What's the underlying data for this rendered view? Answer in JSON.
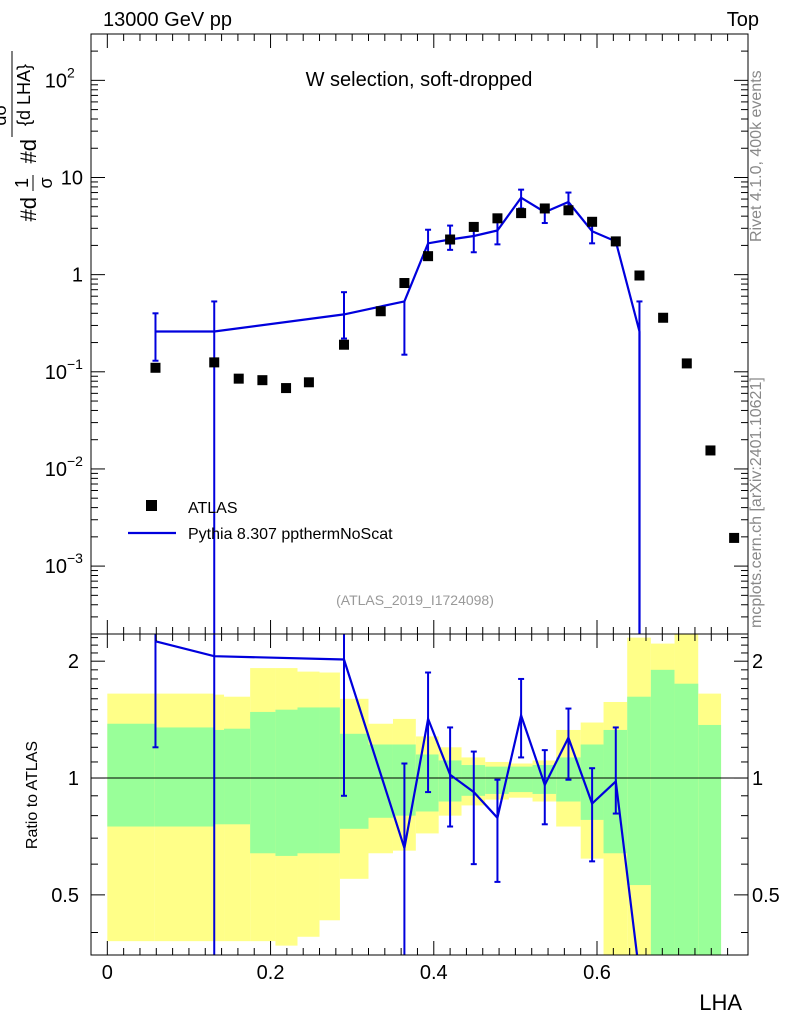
{
  "header": {
    "left": "13000 GeV pp",
    "right": "Top"
  },
  "side_labels": {
    "rivet": "Rivet 4.1.0,  400k events",
    "source": "mcplots.cern.ch [arXiv:2401.10621]"
  },
  "colors": {
    "data": "#000000",
    "mc": "#0000dd",
    "band_inner": "#99ff99",
    "band_outer": "#ffff88"
  },
  "chart_data": [
    {
      "type": "scatter",
      "panel": "main",
      "title": "W selection, soft-dropped",
      "watermark": "(ATLAS_2019_I1724098)",
      "ylabel_parts": [
        "#d",
        "1",
        "σ",
        "#d",
        "dσ",
        "{d LHA}"
      ],
      "yscale": "log",
      "xlim": [
        -0.02,
        0.785
      ],
      "ylim": [
        0.0002,
        300
      ],
      "yticks": [
        {
          "value": 0.001,
          "base": "10",
          "exp": "−3"
        },
        {
          "value": 0.01,
          "base": "10",
          "exp": "−2"
        },
        {
          "value": 0.1,
          "base": "10",
          "exp": "−1"
        },
        {
          "value": 1,
          "label": "1"
        },
        {
          "value": 10,
          "label": "10"
        },
        {
          "value": 100,
          "base": "10",
          "exp": "2"
        }
      ],
      "legend": {
        "position": "bottom-left",
        "entries": [
          "ATLAS",
          "Pythia 8.307 ppthermNoScat"
        ]
      },
      "series": [
        {
          "name": "ATLAS",
          "style": "markers",
          "x": [
            0.059,
            0.131,
            0.161,
            0.19,
            0.219,
            0.247,
            0.29,
            0.335,
            0.364,
            0.393,
            0.42,
            0.449,
            0.478,
            0.507,
            0.536,
            0.565,
            0.594,
            0.623,
            0.652,
            0.681,
            0.71,
            0.739,
            0.768
          ],
          "y": [
            0.11,
            0.125,
            0.085,
            0.082,
            0.068,
            0.078,
            0.19,
            0.42,
            0.82,
            1.55,
            2.3,
            3.1,
            3.8,
            4.3,
            4.8,
            4.6,
            3.5,
            2.2,
            0.98,
            0.36,
            0.122,
            0.0155,
            0.00195
          ]
        },
        {
          "name": "Pythia 8.307 ppthermNoScat",
          "style": "line",
          "x": [
            0.059,
            0.131,
            0.29,
            0.364,
            0.393,
            0.42,
            0.449,
            0.478,
            0.507,
            0.536,
            0.565,
            0.594,
            0.623,
            0.652
          ],
          "y": [
            0.26,
            0.26,
            0.39,
            0.53,
            2.1,
            2.3,
            2.5,
            2.85,
            6.2,
            4.4,
            5.6,
            2.8,
            2.2,
            0.26
          ],
          "yerr_lo": [
            0.13,
            0.26,
            0.17,
            0.38,
            0.6,
            0.5,
            0.8,
            0.8,
            1.4,
            1.0,
            1.2,
            0.7,
            0.2,
            0.26
          ],
          "yerr_hi": [
            0.14,
            0.27,
            0.27,
            0.0,
            0.8,
            0.9,
            0.6,
            0.7,
            1.3,
            0.8,
            1.4,
            0.7,
            0.0,
            0.27
          ],
          "drops_to_zero_after": 0.652
        }
      ]
    },
    {
      "type": "line",
      "panel": "ratio",
      "ylabel": "Ratio to ATLAS",
      "xlabel": "LHA",
      "xlim": [
        -0.02,
        0.785
      ],
      "ylim": [
        0.35,
        2.35
      ],
      "yscale": "log",
      "xticks": [
        0,
        0.2,
        0.4,
        0.6
      ],
      "xtick_labels": [
        "0",
        "0.2",
        "0.4",
        "0.6"
      ],
      "yticks": [
        0.5,
        1,
        2
      ],
      "ytick_labels": [
        "0.5",
        "1",
        "2"
      ],
      "reference": 1,
      "bands": [
        {
          "x0": 0.0,
          "x1": 0.058,
          "in_lo": 0.75,
          "in_hi": 1.38,
          "out_lo": 0.38,
          "out_hi": 1.65
        },
        {
          "x0": 0.058,
          "x1": 0.131,
          "in_lo": 0.75,
          "in_hi": 1.35,
          "out_lo": 0.38,
          "out_hi": 1.65
        },
        {
          "x0": 0.131,
          "x1": 0.143,
          "in_lo": 0.76,
          "in_hi": 1.33,
          "out_lo": 0.38,
          "out_hi": 1.64
        },
        {
          "x0": 0.143,
          "x1": 0.175,
          "in_lo": 0.76,
          "in_hi": 1.34,
          "out_lo": 0.38,
          "out_hi": 1.62
        },
        {
          "x0": 0.175,
          "x1": 0.206,
          "in_lo": 0.64,
          "in_hi": 1.48,
          "out_lo": 0.38,
          "out_hi": 1.92
        },
        {
          "x0": 0.206,
          "x1": 0.233,
          "in_lo": 0.63,
          "in_hi": 1.5,
          "out_lo": 0.37,
          "out_hi": 1.92
        },
        {
          "x0": 0.233,
          "x1": 0.26,
          "in_lo": 0.64,
          "in_hi": 1.52,
          "out_lo": 0.39,
          "out_hi": 1.88
        },
        {
          "x0": 0.26,
          "x1": 0.285,
          "in_lo": 0.64,
          "in_hi": 1.52,
          "out_lo": 0.43,
          "out_hi": 1.87
        },
        {
          "x0": 0.285,
          "x1": 0.32,
          "in_lo": 0.74,
          "in_hi": 1.3,
          "out_lo": 0.55,
          "out_hi": 1.6
        },
        {
          "x0": 0.32,
          "x1": 0.35,
          "in_lo": 0.79,
          "in_hi": 1.22,
          "out_lo": 0.64,
          "out_hi": 1.38
        },
        {
          "x0": 0.35,
          "x1": 0.378,
          "in_lo": 0.8,
          "in_hi": 1.22,
          "out_lo": 0.65,
          "out_hi": 1.42
        },
        {
          "x0": 0.378,
          "x1": 0.406,
          "in_lo": 0.82,
          "in_hi": 1.15,
          "out_lo": 0.72,
          "out_hi": 1.28
        },
        {
          "x0": 0.406,
          "x1": 0.434,
          "in_lo": 0.87,
          "in_hi": 1.11,
          "out_lo": 0.8,
          "out_hi": 1.2
        },
        {
          "x0": 0.434,
          "x1": 0.463,
          "in_lo": 0.9,
          "in_hi": 1.08,
          "out_lo": 0.85,
          "out_hi": 1.13
        },
        {
          "x0": 0.463,
          "x1": 0.492,
          "in_lo": 0.91,
          "in_hi": 1.07,
          "out_lo": 0.88,
          "out_hi": 1.1
        },
        {
          "x0": 0.492,
          "x1": 0.521,
          "in_lo": 0.92,
          "in_hi": 1.07,
          "out_lo": 0.89,
          "out_hi": 1.09
        },
        {
          "x0": 0.521,
          "x1": 0.55,
          "in_lo": 0.91,
          "in_hi": 1.08,
          "out_lo": 0.87,
          "out_hi": 1.11
        },
        {
          "x0": 0.55,
          "x1": 0.58,
          "in_lo": 0.87,
          "in_hi": 1.13,
          "out_lo": 0.75,
          "out_hi": 1.33
        },
        {
          "x0": 0.58,
          "x1": 0.608,
          "in_lo": 0.78,
          "in_hi": 1.22,
          "out_lo": 0.62,
          "out_hi": 1.39
        },
        {
          "x0": 0.608,
          "x1": 0.637,
          "in_lo": 0.64,
          "in_hi": 1.33,
          "out_lo": 0.35,
          "out_hi": 1.57
        },
        {
          "x0": 0.637,
          "x1": 0.666,
          "in_lo": 0.53,
          "in_hi": 1.62,
          "out_lo": 0.35,
          "out_hi": 2.3
        },
        {
          "x0": 0.666,
          "x1": 0.695,
          "in_lo": 0.35,
          "in_hi": 1.9,
          "out_lo": 0.35,
          "out_hi": 2.22
        },
        {
          "x0": 0.695,
          "x1": 0.724,
          "in_lo": 0.35,
          "in_hi": 1.75,
          "out_lo": 0.35,
          "out_hi": 2.35
        },
        {
          "x0": 0.724,
          "x1": 0.752,
          "in_lo": 0.35,
          "in_hi": 1.37,
          "out_lo": 0.35,
          "out_hi": 1.65
        }
      ],
      "series": [
        {
          "name": "Pythia 8.307 ppthermNoScat / ATLAS",
          "x": [
            0.059,
            0.131,
            0.29,
            0.364,
            0.393,
            0.42,
            0.449,
            0.478,
            0.507,
            0.536,
            0.565,
            0.594,
            0.623,
            0.652
          ],
          "y": [
            2.25,
            2.06,
            2.02,
            0.66,
            1.42,
            1.02,
            0.92,
            0.79,
            1.45,
            0.96,
            1.27,
            0.86,
            0.98,
            0.0
          ],
          "yerr_lo": [
            1.05,
            2.06,
            1.12,
            0.66,
            0.5,
            0.27,
            0.32,
            0.25,
            0.32,
            0.2,
            0.28,
            0.25,
            0.17,
            0.0
          ],
          "yerr_hi": [
            0.1,
            0.3,
            0.33,
            0.43,
            0.45,
            0.33,
            0.25,
            0.2,
            0.35,
            0.22,
            0.24,
            0.2,
            0.37,
            0.0
          ]
        }
      ]
    }
  ]
}
